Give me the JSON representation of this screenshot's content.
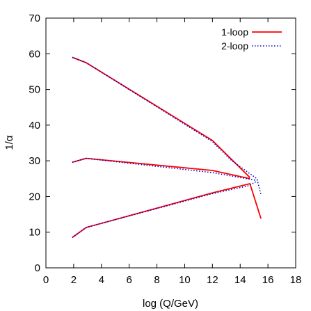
{
  "chart_data": {
    "type": "line",
    "xlabel": "log (Q/GeV)",
    "ylabel": "1/α",
    "xlim": [
      0,
      18
    ],
    "ylim": [
      0,
      70
    ],
    "xticks": [
      0,
      2,
      4,
      6,
      8,
      10,
      12,
      14,
      16,
      18
    ],
    "yticks": [
      0,
      10,
      20,
      30,
      40,
      50,
      60,
      70
    ],
    "grid": false,
    "legend_position": "top-right",
    "colors": {
      "one_loop": "#ff0000",
      "two_loop": "#0000cc"
    },
    "series": [
      {
        "name": "1-loop",
        "style": "solid",
        "curves": [
          {
            "x": [
              1.9,
              2.9,
              12.0,
              14.7
            ],
            "y": [
              59.0,
              57.5,
              35.7,
              25.3
            ]
          },
          {
            "x": [
              1.9,
              2.9,
              12.0,
              14.7
            ],
            "y": [
              29.6,
              30.7,
              27.3,
              25.0
            ]
          },
          {
            "x": [
              1.9,
              2.9,
              12.0,
              14.7,
              15.5
            ],
            "y": [
              8.5,
              11.3,
              21.0,
              23.6,
              13.8
            ]
          }
        ]
      },
      {
        "name": "2-loop",
        "style": "dotted",
        "curves": [
          {
            "x": [
              1.9,
              2.9,
              12.0,
              13.4,
              15.2,
              15.5
            ],
            "y": [
              59.0,
              57.5,
              35.4,
              30.0,
              25.0,
              20.5
            ]
          },
          {
            "x": [
              1.9,
              2.9,
              12.0,
              15.2
            ],
            "y": [
              29.6,
              30.7,
              26.7,
              24.5
            ]
          },
          {
            "x": [
              1.9,
              2.9,
              12.0,
              14.6,
              15.2
            ],
            "y": [
              8.5,
              11.3,
              20.8,
              23.0,
              24.3
            ]
          }
        ]
      }
    ]
  }
}
